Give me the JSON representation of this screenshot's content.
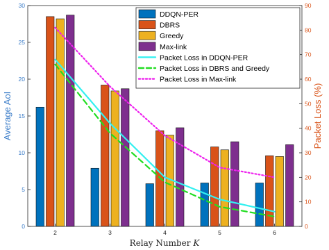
{
  "chart_data": {
    "type": "bar",
    "categories": [
      "2",
      "3",
      "4",
      "5",
      "6"
    ],
    "xlabel": "Relay Number",
    "xlabel_var": "K",
    "ylabel_left": "Average AoI",
    "ylabel_right": "Packet Loss (%)",
    "ylim_left": [
      0,
      30
    ],
    "ylim_right": [
      0,
      90
    ],
    "yticks_left": [
      "0",
      "5",
      "10",
      "15",
      "20",
      "25",
      "30"
    ],
    "yticks_right": [
      "0",
      "10",
      "20",
      "30",
      "40",
      "50",
      "60",
      "70",
      "80",
      "90"
    ],
    "grid": false,
    "legend_position": "top-right",
    "series": [
      {
        "name": "DDQN-PER",
        "kind": "bar",
        "axis": "left",
        "color": "#0072bd",
        "values": [
          16.2,
          7.9,
          5.8,
          5.9,
          5.9
        ]
      },
      {
        "name": "DBRS",
        "kind": "bar",
        "axis": "left",
        "color": "#d95319",
        "values": [
          28.5,
          19.2,
          13.0,
          10.8,
          9.6
        ]
      },
      {
        "name": "Greedy",
        "kind": "bar",
        "axis": "left",
        "color": "#edb120",
        "values": [
          28.2,
          18.4,
          12.4,
          10.4,
          9.5
        ]
      },
      {
        "name": "Max-link",
        "kind": "bar",
        "axis": "left",
        "color": "#7e2f8e",
        "values": [
          28.7,
          18.7,
          13.4,
          11.5,
          11.1
        ]
      },
      {
        "name": "Packet Loss in DDQN-PER",
        "kind": "line",
        "style": "solid",
        "axis": "right",
        "color": "#33f0f0",
        "values": [
          68,
          42,
          20,
          11,
          6
        ]
      },
      {
        "name": "Packet Loss in DBRS and Greedy",
        "kind": "line",
        "style": "dashed",
        "axis": "right",
        "color": "#22dd22",
        "values": [
          66,
          38,
          18,
          8,
          4
        ]
      },
      {
        "name": "Packet Loss in Max-link",
        "kind": "line",
        "style": "dotted",
        "axis": "right",
        "color": "#ee22ee",
        "values": [
          81,
          57,
          37,
          24,
          20
        ]
      }
    ]
  }
}
